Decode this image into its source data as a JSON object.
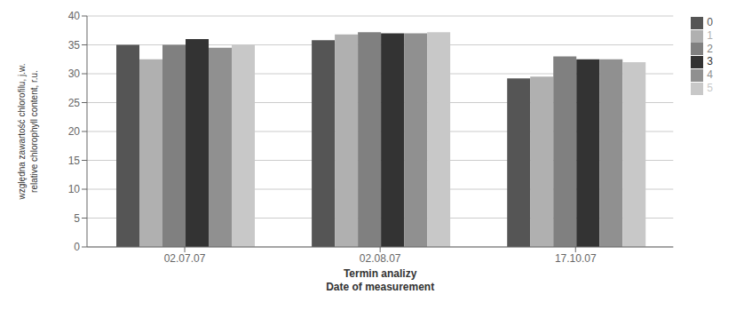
{
  "chart_data": {
    "type": "bar",
    "categories": [
      "02.07.07",
      "02.08.07",
      "17.10.07"
    ],
    "series": [
      {
        "name": "0",
        "color": "#555555",
        "values": [
          35.0,
          35.8,
          29.2
        ]
      },
      {
        "name": "1",
        "color": "#b0b0b0",
        "values": [
          32.5,
          36.8,
          29.5
        ]
      },
      {
        "name": "2",
        "color": "#808080",
        "values": [
          35.0,
          37.2,
          33.0
        ]
      },
      {
        "name": "3",
        "color": "#333333",
        "values": [
          36.0,
          37.0,
          32.5
        ]
      },
      {
        "name": "4",
        "color": "#909090",
        "values": [
          34.5,
          37.0,
          32.5
        ]
      },
      {
        "name": "5",
        "color": "#c8c8c8",
        "values": [
          35.0,
          37.2,
          32.0
        ]
      }
    ],
    "xlabel": "Termin analizy\nDate of measurement",
    "ylabel": "względna zawartość chlorofilu, j.w.\nrelative chlorophyll content, r.u.",
    "ylim": [
      0,
      40
    ],
    "yticks": [
      0,
      5,
      10,
      15,
      20,
      25,
      30,
      35,
      40
    ],
    "grid": true,
    "legend": "right"
  }
}
